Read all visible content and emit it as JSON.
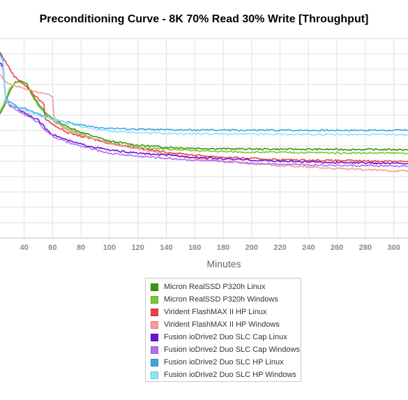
{
  "chart_data": {
    "type": "line",
    "title": "Preconditioning Curve - 8K 70% Read 30% Write [Throughput]",
    "xlabel": "Minutes",
    "ylabel": "",
    "x_ticks": [
      40,
      60,
      80,
      100,
      120,
      140,
      160,
      180,
      200,
      220,
      240,
      260,
      280,
      300
    ],
    "xlim": [
      23,
      310
    ],
    "ylim": [
      0,
      100
    ],
    "grid": true,
    "legend_position": "bottom",
    "series": [
      {
        "name": "Micron RealSSD P320h Linux",
        "color": "#3e9410",
        "points": [
          [
            23,
            62
          ],
          [
            26,
            66
          ],
          [
            30,
            74
          ],
          [
            34,
            78
          ],
          [
            38,
            79
          ],
          [
            42,
            77
          ],
          [
            46,
            72
          ],
          [
            50,
            67
          ],
          [
            56,
            62
          ],
          [
            62,
            59
          ],
          [
            70,
            56
          ],
          [
            80,
            53
          ],
          [
            100,
            48.5
          ],
          [
            120,
            46.5
          ],
          [
            140,
            45.5
          ],
          [
            160,
            45
          ],
          [
            180,
            44.7
          ],
          [
            200,
            44.6
          ],
          [
            220,
            44.5
          ],
          [
            260,
            44.4
          ],
          [
            310,
            44.3
          ]
        ]
      },
      {
        "name": "Micron RealSSD P320h Windows",
        "color": "#79c736",
        "points": [
          [
            23,
            63
          ],
          [
            26,
            68
          ],
          [
            30,
            75
          ],
          [
            34,
            78
          ],
          [
            38,
            78
          ],
          [
            42,
            76
          ],
          [
            46,
            71
          ],
          [
            50,
            66
          ],
          [
            56,
            61
          ],
          [
            62,
            58
          ],
          [
            70,
            55
          ],
          [
            80,
            52
          ],
          [
            100,
            47.5
          ],
          [
            120,
            45.5
          ],
          [
            140,
            44.5
          ],
          [
            160,
            43.8
          ],
          [
            180,
            43.3
          ],
          [
            200,
            43
          ],
          [
            240,
            42.8
          ],
          [
            280,
            42.6
          ],
          [
            310,
            42.5
          ]
        ]
      },
      {
        "name": "Virident FlashMAX II HP Linux",
        "color": "#e84040",
        "points": [
          [
            23,
            93
          ],
          [
            28,
            87
          ],
          [
            33,
            81
          ],
          [
            40,
            77
          ],
          [
            48,
            71
          ],
          [
            54,
            67
          ],
          [
            54.5,
            60
          ],
          [
            60,
            57
          ],
          [
            70,
            53
          ],
          [
            80,
            51
          ],
          [
            100,
            47.5
          ],
          [
            120,
            45
          ],
          [
            140,
            43
          ],
          [
            160,
            41.5
          ],
          [
            180,
            40.5
          ],
          [
            200,
            39.8
          ],
          [
            220,
            39.3
          ],
          [
            240,
            39
          ],
          [
            260,
            38.8
          ],
          [
            280,
            38.6
          ],
          [
            310,
            38.5
          ]
        ]
      },
      {
        "name": "Virident FlashMAX II HP Windows",
        "color": "#f59a9a",
        "points": [
          [
            23,
            82
          ],
          [
            26,
            79
          ],
          [
            30,
            77
          ],
          [
            35,
            76
          ],
          [
            40,
            75
          ],
          [
            45,
            74
          ],
          [
            50,
            73
          ],
          [
            55,
            72
          ],
          [
            60,
            71
          ],
          [
            61,
            61
          ],
          [
            64,
            57
          ],
          [
            70,
            54
          ],
          [
            80,
            51.5
          ],
          [
            100,
            47.5
          ],
          [
            120,
            44.5
          ],
          [
            140,
            42
          ],
          [
            160,
            40
          ],
          [
            180,
            38.5
          ],
          [
            200,
            37.3
          ],
          [
            220,
            36.3
          ],
          [
            240,
            35.5
          ],
          [
            260,
            34.8
          ],
          [
            280,
            34.2
          ],
          [
            300,
            33.7
          ],
          [
            310,
            33.5
          ]
        ]
      },
      {
        "name": "Fusion ioDrive2 Duo SLC Cap Linux",
        "color": "#6a13d6",
        "points": [
          [
            23,
            88
          ],
          [
            25,
            86
          ],
          [
            27,
            70
          ],
          [
            30,
            67
          ],
          [
            35,
            65
          ],
          [
            40,
            63
          ],
          [
            45,
            61
          ],
          [
            50,
            59
          ],
          [
            55,
            55
          ],
          [
            60,
            52
          ],
          [
            70,
            49
          ],
          [
            80,
            47
          ],
          [
            100,
            44
          ],
          [
            120,
            42.5
          ],
          [
            140,
            41.5
          ],
          [
            160,
            40.5
          ],
          [
            180,
            39.7
          ],
          [
            200,
            39
          ],
          [
            220,
            38.5
          ],
          [
            240,
            38.1
          ],
          [
            260,
            37.8
          ],
          [
            280,
            37.6
          ],
          [
            310,
            37.4
          ]
        ]
      },
      {
        "name": "Fusion ioDrive2 Duo SLC Cap Windows",
        "color": "#b56cf0",
        "points": [
          [
            23,
            87
          ],
          [
            25,
            85
          ],
          [
            27,
            69
          ],
          [
            30,
            66
          ],
          [
            35,
            64
          ],
          [
            40,
            62
          ],
          [
            45,
            60
          ],
          [
            50,
            58
          ],
          [
            55,
            54
          ],
          [
            60,
            51
          ],
          [
            70,
            48
          ],
          [
            80,
            46
          ],
          [
            100,
            42.5
          ],
          [
            120,
            41
          ],
          [
            140,
            40
          ],
          [
            160,
            39
          ],
          [
            180,
            38.2
          ],
          [
            200,
            37.6
          ],
          [
            220,
            37.1
          ],
          [
            240,
            36.7
          ],
          [
            260,
            36.4
          ],
          [
            280,
            36.2
          ],
          [
            310,
            36
          ]
        ]
      },
      {
        "name": "Fusion ioDrive2 Duo SLC HP Linux",
        "color": "#3ea7dd",
        "points": [
          [
            23,
            92
          ],
          [
            25,
            90
          ],
          [
            27,
            70
          ],
          [
            30,
            68
          ],
          [
            35,
            66
          ],
          [
            40,
            65
          ],
          [
            45,
            63.5
          ],
          [
            50,
            62
          ],
          [
            55,
            61
          ],
          [
            60,
            59.5
          ],
          [
            70,
            58
          ],
          [
            80,
            56.5
          ],
          [
            90,
            55.5
          ],
          [
            100,
            55
          ],
          [
            120,
            54.5
          ],
          [
            140,
            54.2
          ],
          [
            160,
            54.1
          ],
          [
            200,
            54
          ],
          [
            240,
            54
          ],
          [
            280,
            54
          ],
          [
            310,
            54
          ]
        ]
      },
      {
        "name": "Fusion ioDrive2 Duo SLC HP Windows",
        "color": "#8be6fa",
        "points": [
          [
            23,
            91
          ],
          [
            25,
            89
          ],
          [
            27,
            69
          ],
          [
            30,
            67
          ],
          [
            35,
            65
          ],
          [
            40,
            64
          ],
          [
            45,
            62.5
          ],
          [
            50,
            61.5
          ],
          [
            55,
            60.5
          ],
          [
            60,
            59.5
          ],
          [
            70,
            57.5
          ],
          [
            80,
            56
          ],
          [
            90,
            54.5
          ],
          [
            100,
            53.5
          ],
          [
            120,
            52.8
          ],
          [
            140,
            52.4
          ],
          [
            160,
            52.2
          ],
          [
            200,
            52
          ],
          [
            240,
            51.9
          ],
          [
            280,
            51.8
          ],
          [
            310,
            51.8
          ]
        ]
      }
    ]
  }
}
